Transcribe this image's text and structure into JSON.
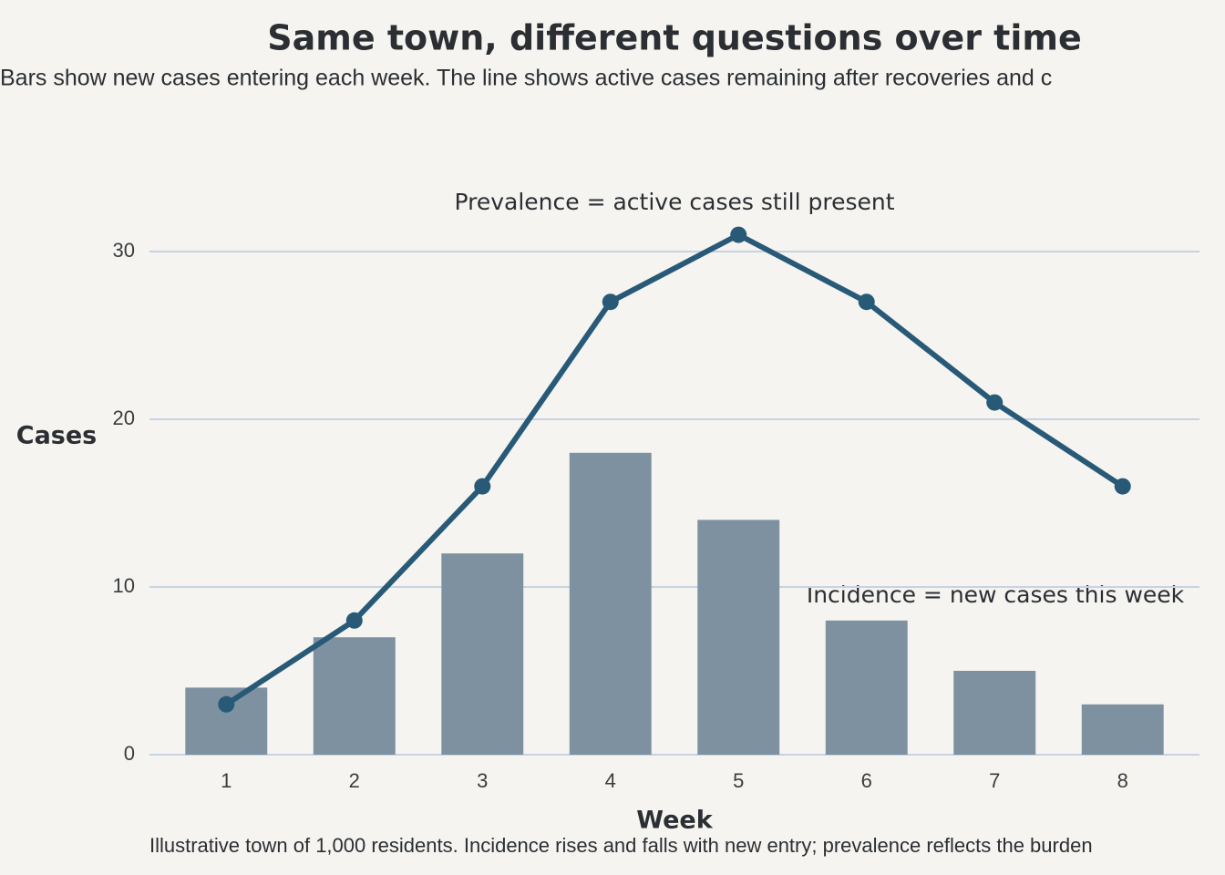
{
  "chart_data": {
    "type": "bar_line",
    "title": "Same town, different questions over time",
    "subtitle": "Bars show new cases entering each week. The line shows active cases remaining after recoveries and c",
    "caption": "Illustrative town of 1,000 residents. Incidence rises and falls with new entry; prevalence reflects the burden",
    "x_label": "Week",
    "y_label": "Cases",
    "categories": [
      "1",
      "2",
      "3",
      "4",
      "5",
      "6",
      "7",
      "8"
    ],
    "series": [
      {
        "type": "bar",
        "color": "#7d91a0",
        "values": [
          4,
          7,
          12,
          18,
          14,
          8,
          5,
          3
        ]
      },
      {
        "type": "line",
        "color": "#285a78",
        "values": [
          3,
          8,
          16,
          27,
          31,
          27,
          21,
          16
        ]
      }
    ],
    "annotations": [
      "Prevalence = active cases still present",
      "Incidence = new cases this week"
    ],
    "ylim": [
      0,
      34
    ],
    "yticks": [
      0,
      10,
      20,
      30
    ],
    "grid": true
  }
}
